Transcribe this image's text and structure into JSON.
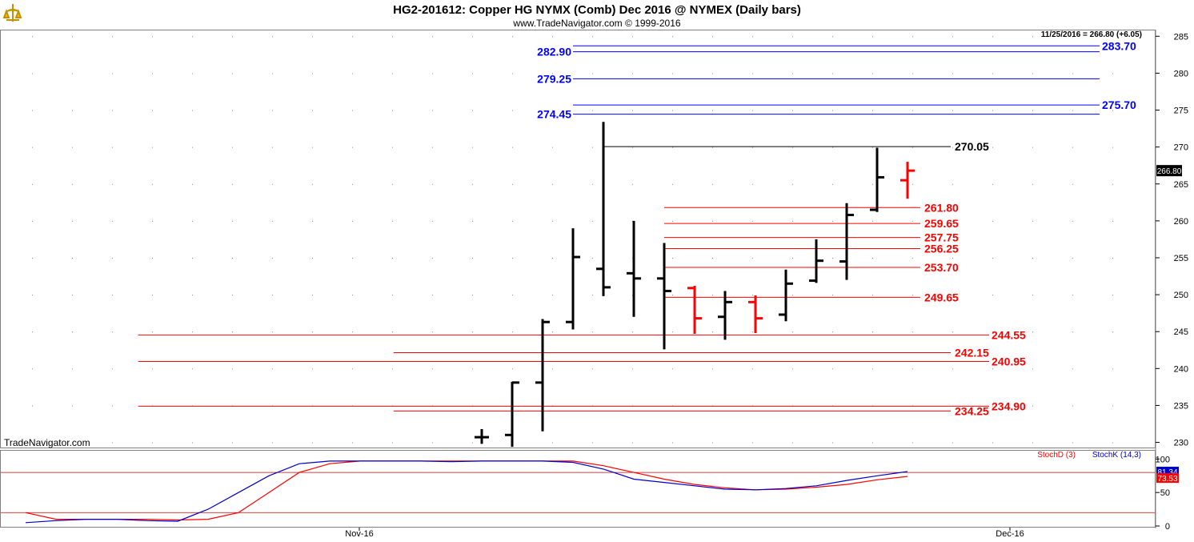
{
  "header": {
    "title": "HG2-201612:  Copper HG NYMX (Comb) Dec 2016 @ NYMEX  (Daily bars)",
    "copyright": "www.TradeNavigator.com © 1999-2016",
    "last_quote": "11/25/2016 = 266.80 (+6.05)",
    "watermark": "TradeNavigator.com"
  },
  "colors": {
    "up_bar": "#000000",
    "down_bar": "#ff0000",
    "resistance": "#0000ff",
    "support": "#ff0000",
    "swing": "#000000",
    "stoch_d": "#ff0000",
    "stoch_k": "#0000cc"
  },
  "chart_data": [
    {
      "type": "ohlc",
      "price_axis": {
        "ticks": [
          230,
          235,
          240,
          245,
          250,
          255,
          260,
          265,
          270,
          275,
          280,
          285
        ],
        "ylim": [
          229.3,
          285.9
        ]
      },
      "x_labels": [
        {
          "label": "Nov-16",
          "bar": 5
        },
        {
          "label": "Dec-16",
          "bar": 27
        }
      ],
      "last_price_label": "266.80",
      "bars": [
        {
          "o": 230.7,
          "h": 231.8,
          "l": 229.8,
          "c": 230.7,
          "color": "black"
        },
        {
          "o": 231.0,
          "h": 238.2,
          "l": 229.4,
          "c": 238.1,
          "color": "black"
        },
        {
          "o": 238.1,
          "h": 246.7,
          "l": 231.5,
          "c": 246.3,
          "color": "black"
        },
        {
          "o": 246.3,
          "h": 259.0,
          "l": 245.3,
          "c": 255.1,
          "color": "black"
        },
        {
          "o": 253.5,
          "h": 273.4,
          "l": 249.8,
          "c": 251.0,
          "color": "black"
        },
        {
          "o": 252.9,
          "h": 260.0,
          "l": 247.0,
          "c": 252.2,
          "color": "black"
        },
        {
          "o": 252.2,
          "h": 257.0,
          "l": 242.6,
          "c": 250.5,
          "color": "black"
        },
        {
          "o": 250.9,
          "h": 251.2,
          "l": 244.7,
          "c": 246.8,
          "color": "red"
        },
        {
          "o": 247.0,
          "h": 250.5,
          "l": 243.9,
          "c": 249.0,
          "color": "black"
        },
        {
          "o": 249.0,
          "h": 249.9,
          "l": 244.8,
          "c": 246.8,
          "color": "red"
        },
        {
          "o": 247.3,
          "h": 253.4,
          "l": 246.4,
          "c": 251.5,
          "color": "black"
        },
        {
          "o": 251.9,
          "h": 257.5,
          "l": 251.6,
          "c": 254.6,
          "color": "black"
        },
        {
          "o": 254.5,
          "h": 262.4,
          "l": 252.0,
          "c": 260.8,
          "color": "black"
        },
        {
          "o": 261.5,
          "h": 269.9,
          "l": 261.2,
          "c": 265.9,
          "color": "black"
        },
        {
          "o": 265.5,
          "h": 268.0,
          "l": 263.0,
          "c": 266.8,
          "color": "red"
        }
      ],
      "levels": [
        {
          "value": 283.7,
          "label": "283.70",
          "kind": "resistance",
          "label_side": "right",
          "from_bar": 3.0
        },
        {
          "value": 282.9,
          "label": "282.90",
          "kind": "resistance",
          "label_side": "left",
          "from_bar": 3.0
        },
        {
          "value": 279.25,
          "label": "279.25",
          "kind": "resistance",
          "label_side": "left",
          "from_bar": 3.0
        },
        {
          "value": 275.7,
          "label": "275.70",
          "kind": "resistance",
          "label_side": "right",
          "from_bar": 3.0
        },
        {
          "value": 274.45,
          "label": "274.45",
          "kind": "resistance",
          "label_side": "left",
          "from_bar": 3.0
        },
        {
          "value": 270.05,
          "label": "270.05",
          "kind": "swing",
          "label_side": "end",
          "from_bar": 4.0
        },
        {
          "value": 261.8,
          "label": "261.80",
          "kind": "support",
          "label_side": "end",
          "from_bar": 6.0
        },
        {
          "value": 259.65,
          "label": "259.65",
          "kind": "support",
          "label_side": "end",
          "from_bar": 6.0
        },
        {
          "value": 257.75,
          "label": "257.75",
          "kind": "support",
          "label_side": "end",
          "from_bar": 6.0
        },
        {
          "value": 256.25,
          "label": "256.25",
          "kind": "support",
          "label_side": "end",
          "from_bar": 6.0
        },
        {
          "value": 253.7,
          "label": "253.70",
          "kind": "support",
          "label_side": "end",
          "from_bar": 6.0
        },
        {
          "value": 249.65,
          "label": "249.65",
          "kind": "support",
          "label_side": "end",
          "from_bar": 6.0
        },
        {
          "value": 244.55,
          "label": "244.55",
          "kind": "support",
          "label_side": "right",
          "from_bar": -11.3
        },
        {
          "value": 242.15,
          "label": "242.15",
          "kind": "support",
          "label_side": "end",
          "from_bar": -2.9
        },
        {
          "value": 240.95,
          "label": "240.95",
          "kind": "support",
          "label_side": "right",
          "from_bar": -11.3
        },
        {
          "value": 234.9,
          "label": "234.90",
          "kind": "support",
          "label_side": "right",
          "from_bar": -11.3
        },
        {
          "value": 234.25,
          "label": "234.25",
          "kind": "support",
          "label_side": "end",
          "from_bar": -2.9
        }
      ]
    },
    {
      "type": "line",
      "indicator": "Stochastics",
      "y_ticks": [
        0,
        50,
        100
      ],
      "ylim": [
        0,
        110
      ],
      "reference_lines": [
        20,
        80
      ],
      "series": [
        {
          "name": "StochD (3)",
          "color": "#ff0000",
          "points": [
            [
              -15,
              20
            ],
            [
              -14,
              10
            ],
            [
              -13,
              10
            ],
            [
              -12,
              10
            ],
            [
              -11,
              10
            ],
            [
              -10,
              9
            ],
            [
              -9,
              10
            ],
            [
              -8,
              20
            ],
            [
              -7,
              50
            ],
            [
              -6,
              80
            ],
            [
              -5,
              93
            ],
            [
              -4,
              97
            ],
            [
              -3,
              97
            ],
            [
              -2,
              97
            ],
            [
              -1,
              97
            ],
            [
              0,
              97
            ],
            [
              1,
              97
            ],
            [
              2,
              97
            ],
            [
              3,
              97
            ],
            [
              4,
              90
            ],
            [
              5,
              80
            ],
            [
              6,
              70
            ],
            [
              7,
              62
            ],
            [
              8,
              57
            ],
            [
              9,
              54
            ],
            [
              10,
              55
            ],
            [
              11,
              58
            ],
            [
              12,
              62
            ],
            [
              13,
              69
            ],
            [
              14,
              74
            ]
          ]
        },
        {
          "name": "StochK (14,3)",
          "color": "#0000cc",
          "points": [
            [
              -15,
              5
            ],
            [
              -14,
              8
            ],
            [
              -13,
              10
            ],
            [
              -12,
              10
            ],
            [
              -11,
              8
            ],
            [
              -10,
              7
            ],
            [
              -9,
              25
            ],
            [
              -8,
              50
            ],
            [
              -7,
              75
            ],
            [
              -6,
              93
            ],
            [
              -5,
              97
            ],
            [
              -4,
              97
            ],
            [
              -3,
              97
            ],
            [
              -2,
              97
            ],
            [
              -1,
              96
            ],
            [
              0,
              97
            ],
            [
              1,
              97
            ],
            [
              2,
              97
            ],
            [
              3,
              95
            ],
            [
              4,
              85
            ],
            [
              5,
              70
            ],
            [
              6,
              65
            ],
            [
              7,
              60
            ],
            [
              8,
              55
            ],
            [
              9,
              54
            ],
            [
              10,
              56
            ],
            [
              11,
              60
            ],
            [
              12,
              68
            ],
            [
              13,
              75
            ],
            [
              14,
              81.34
            ]
          ]
        }
      ],
      "value_labels": [
        {
          "series": "StochK (14,3)",
          "value": "81.34"
        },
        {
          "series": "StochD (3)",
          "value": "73.53"
        }
      ]
    }
  ]
}
